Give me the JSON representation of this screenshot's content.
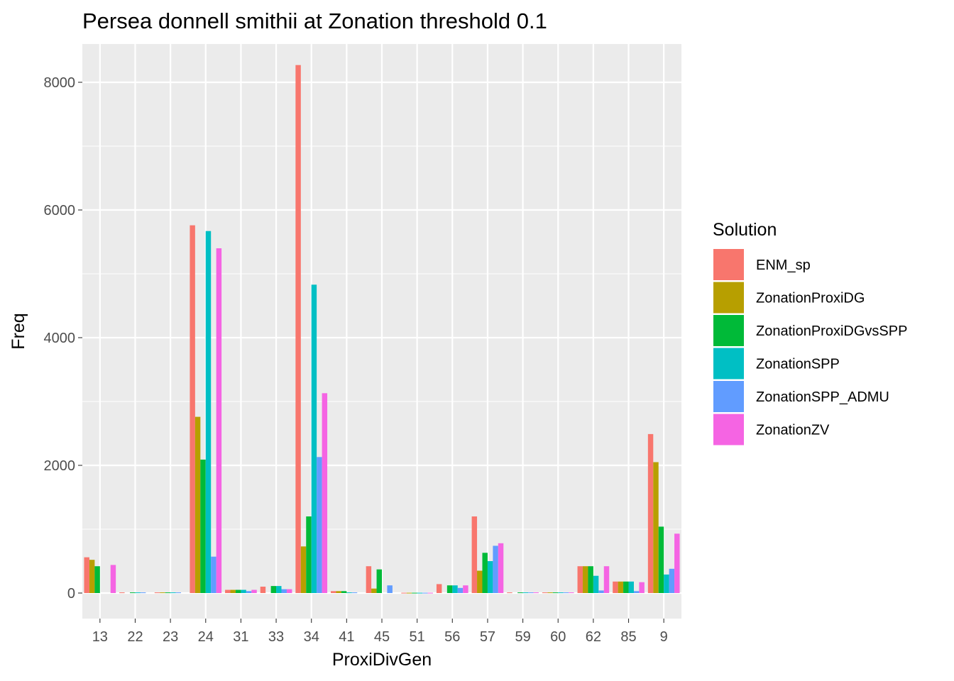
{
  "chart_data": {
    "type": "bar",
    "title": "Persea donnell smithii at Zonation threshold 0.1",
    "xlabel": "ProxiDivGen",
    "ylabel": "Freq",
    "ylim": [
      -400,
      8600
    ],
    "yticks": [
      0,
      2000,
      4000,
      6000,
      8000
    ],
    "grid": true,
    "legend_position": "right",
    "legend_title": "Solution",
    "categories": [
      "13",
      "22",
      "23",
      "24",
      "31",
      "33",
      "34",
      "41",
      "45",
      "51",
      "56",
      "57",
      "59",
      "60",
      "62",
      "85",
      "9"
    ],
    "series": [
      {
        "name": "ENM_sp",
        "color": "#F8766D",
        "values": [
          560,
          10,
          10,
          5760,
          50,
          100,
          8270,
          30,
          420,
          5,
          140,
          1200,
          10,
          10,
          420,
          180,
          2490
        ]
      },
      {
        "name": "ZonationProxiDG",
        "color": "#B79F00",
        "values": [
          520,
          0,
          10,
          2760,
          50,
          0,
          730,
          30,
          70,
          5,
          0,
          350,
          0,
          10,
          420,
          180,
          2050
        ]
      },
      {
        "name": "ZonationProxiDGvsSPP",
        "color": "#00BA38",
        "values": [
          420,
          10,
          10,
          2090,
          50,
          110,
          1200,
          30,
          370,
          5,
          120,
          630,
          10,
          10,
          420,
          180,
          1040
        ]
      },
      {
        "name": "ZonationSPP",
        "color": "#00BFC4",
        "values": [
          0,
          10,
          10,
          5670,
          50,
          110,
          4830,
          10,
          0,
          5,
          120,
          500,
          10,
          10,
          270,
          180,
          290
        ]
      },
      {
        "name": "ZonationSPP_ADMU",
        "color": "#619CFF",
        "values": [
          0,
          10,
          10,
          570,
          30,
          60,
          2130,
          10,
          120,
          5,
          80,
          740,
          10,
          10,
          40,
          30,
          380
        ]
      },
      {
        "name": "ZonationZV",
        "color": "#F564E3",
        "values": [
          440,
          0,
          0,
          5400,
          50,
          60,
          3130,
          0,
          0,
          5,
          120,
          780,
          10,
          10,
          420,
          170,
          930
        ]
      }
    ]
  }
}
